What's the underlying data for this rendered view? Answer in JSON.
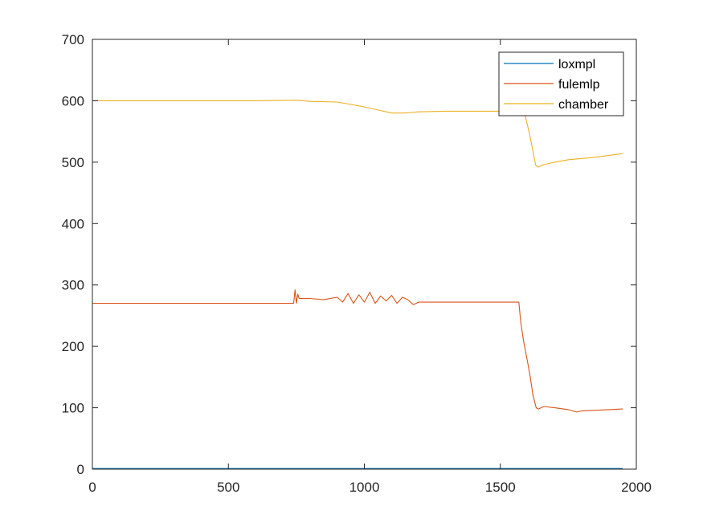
{
  "chart_data": {
    "type": "line",
    "title": "",
    "xlabel": "",
    "ylabel": "",
    "xlim": [
      0,
      2000
    ],
    "ylim": [
      0,
      700
    ],
    "xticks": [
      0,
      500,
      1000,
      1500,
      2000
    ],
    "yticks": [
      0,
      100,
      200,
      300,
      400,
      500,
      600,
      700
    ],
    "xtick_labels": [
      "0",
      "500",
      "1000",
      "1500",
      "2000"
    ],
    "ytick_labels": [
      "0",
      "100",
      "200",
      "300",
      "400",
      "500",
      "600",
      "700"
    ],
    "grid": false,
    "legend_position": "top-right",
    "series": [
      {
        "name": "loxmpl",
        "color": "#0072BD",
        "x": [
          0,
          250,
          500,
          750,
          1000,
          1250,
          1500,
          1750,
          1950
        ],
        "y": [
          1,
          1,
          1,
          1,
          1,
          1,
          1,
          1,
          1
        ]
      },
      {
        "name": "fulemlp",
        "color": "#D95319",
        "x": [
          0,
          600,
          740,
          745,
          750,
          755,
          760,
          800,
          850,
          900,
          920,
          940,
          960,
          980,
          1000,
          1020,
          1040,
          1060,
          1080,
          1100,
          1120,
          1140,
          1160,
          1180,
          1200,
          1300,
          1400,
          1500,
          1568,
          1575,
          1585,
          1600,
          1610,
          1620,
          1632,
          1640,
          1660,
          1700,
          1750,
          1780,
          1800,
          1900,
          1950
        ],
        "y": [
          270,
          270,
          270,
          292,
          270,
          285,
          278,
          278,
          276,
          280,
          272,
          286,
          270,
          284,
          272,
          288,
          270,
          282,
          274,
          283,
          270,
          280,
          276,
          268,
          272,
          272,
          272,
          272,
          272,
          240,
          210,
          175,
          150,
          120,
          100,
          98,
          102,
          100,
          97,
          93,
          95,
          97,
          98
        ]
      },
      {
        "name": "chamber",
        "color": "#EDB120",
        "x": [
          0,
          200,
          400,
          600,
          750,
          800,
          900,
          950,
          1000,
          1050,
          1100,
          1150,
          1200,
          1300,
          1400,
          1500,
          1560,
          1590,
          1600,
          1610,
          1630,
          1640,
          1660,
          1700,
          1750,
          1800,
          1850,
          1900,
          1950
        ],
        "y": [
          600,
          600,
          600,
          600,
          601,
          599,
          598,
          594,
          590,
          585,
          580,
          580,
          582,
          583,
          583,
          583,
          583,
          578,
          560,
          540,
          495,
          492,
          496,
          500,
          504,
          506,
          508,
          511,
          514
        ]
      }
    ]
  }
}
